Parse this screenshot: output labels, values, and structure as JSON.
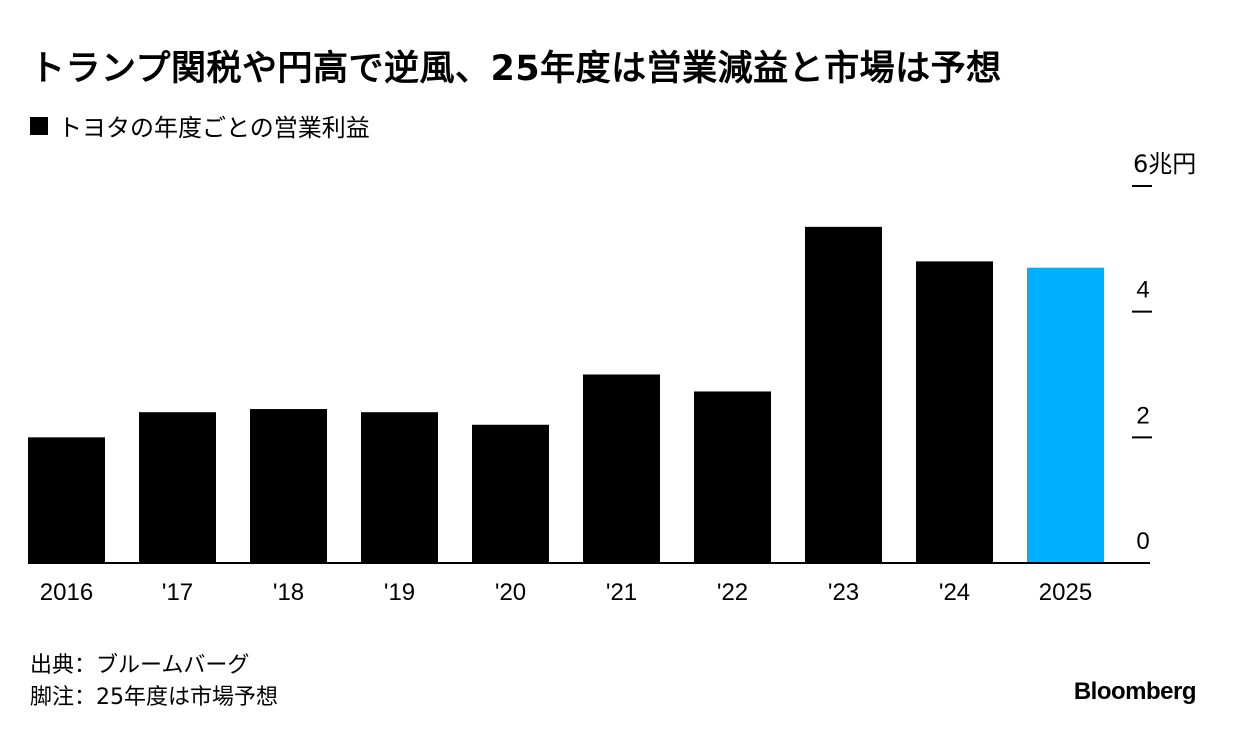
{
  "title": "トランプ関税や円高で逆風、25年度は営業減益と市場は予想",
  "subtitle": "トヨタの年度ごとの営業利益",
  "unit_label": "6兆円",
  "footer": {
    "source": "出典：ブルームバーグ",
    "note": "脚注：25年度は市場予想"
  },
  "brand": "Bloomberg",
  "colors": {
    "actual": "#000000",
    "forecast": "#00aeff"
  },
  "chart_data": {
    "type": "bar",
    "categories": [
      "2016",
      "'17",
      "'18",
      "'19",
      "'20",
      "'21",
      "'22",
      "'23",
      "'24",
      "2025"
    ],
    "series": [
      {
        "name": "トヨタの年度ごとの営業利益",
        "values": [
          2.0,
          2.4,
          2.45,
          2.4,
          2.2,
          3.0,
          2.73,
          5.35,
          4.8,
          4.7
        ]
      }
    ],
    "highlight_index": 9,
    "ylim": [
      0,
      6
    ],
    "yticks": [
      0,
      2,
      4,
      6
    ],
    "ytick_labels": [
      "0",
      "2",
      "4",
      ""
    ],
    "y_axis_side": "right",
    "grid": false,
    "legend": "top-left"
  }
}
